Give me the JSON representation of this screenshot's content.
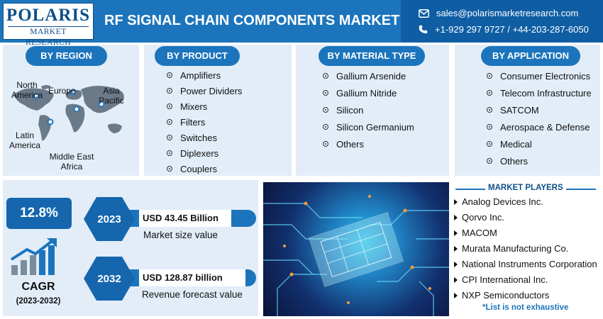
{
  "header": {
    "logo_main": "POLARIS",
    "logo_sub": "MARKET RESEARCH",
    "title": "RF SIGNAL CHAIN COMPONENTS MARKET",
    "email": "sales@polarismarketresearch.com",
    "phone": "+1-929 297 9727  / +44-203-287-6050"
  },
  "region": {
    "heading": "BY REGION",
    "labels": [
      "North America",
      "Europe",
      "Asia Pacific",
      "Latin America",
      "Middle East Africa"
    ]
  },
  "product": {
    "heading": "BY PRODUCT",
    "items": [
      "Amplifiers",
      "Power Dividers",
      "Mixers",
      "Filters",
      "Switches",
      "Diplexers",
      "Couplers"
    ]
  },
  "material": {
    "heading": "BY MATERIAL TYPE",
    "items": [
      "Gallium Arsenide",
      "Gallium Nitride",
      "Silicon",
      "Silicon Germanium",
      "Others"
    ]
  },
  "application": {
    "heading": "BY APPLICATION",
    "items": [
      "Consumer Electronics",
      "Telecom Infrastructure",
      "SATCOM",
      "Aerospace & Defense",
      "Medical",
      "Others"
    ]
  },
  "cagr": {
    "value": "12.8%",
    "label": "CAGR",
    "period": "(2023-2032)"
  },
  "market_size": {
    "year": "2023",
    "value": "USD 43.45 Billion",
    "desc": "Market size value"
  },
  "forecast": {
    "year": "2032",
    "value": "USD 128.87 billion",
    "desc": "Revenue forecast value"
  },
  "players": {
    "heading": "MARKET PLAYERS",
    "items": [
      "Analog Devices Inc.",
      "Qorvo Inc.",
      "MACOM",
      "Murata Manufacturing Co.",
      "National Instruments Corporation",
      "CPI International Inc.",
      "NXP Semiconductors"
    ],
    "note": "*List is not exhaustive"
  },
  "colors": {
    "primary": "#1c75bc",
    "dark": "#0d4f8b",
    "panel": "#e2edf8"
  }
}
